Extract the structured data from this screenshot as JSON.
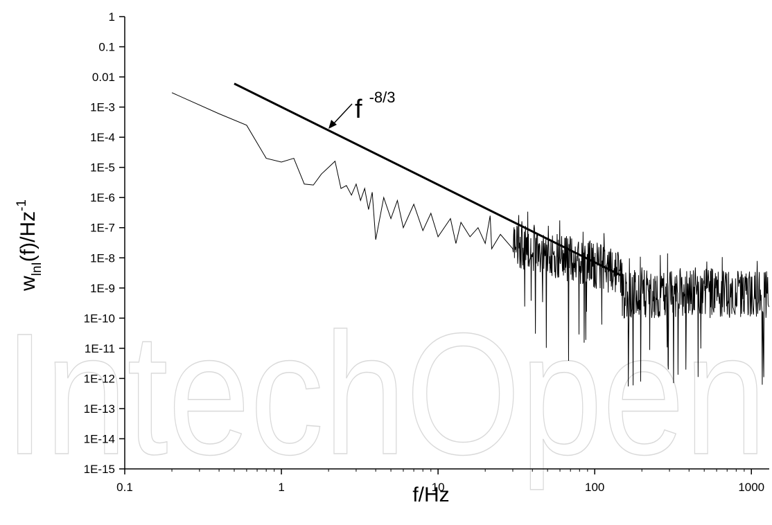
{
  "watermark": "IntechOpen",
  "chart_data": {
    "type": "line",
    "title": "",
    "xlabel": "f/Hz",
    "ylabel": {
      "base": "w",
      "sub": "lnI",
      "middle": "(f)/Hz",
      "sup": "-1"
    },
    "x_scale": "log",
    "y_scale": "log",
    "xlim": [
      0.1,
      1300
    ],
    "ylim": [
      1e-15,
      1
    ],
    "x_ticks": [
      {
        "value": 0.1,
        "label": "0.1"
      },
      {
        "value": 1,
        "label": "1"
      },
      {
        "value": 10,
        "label": "10"
      },
      {
        "value": 100,
        "label": "100"
      },
      {
        "value": 1000,
        "label": "1000"
      }
    ],
    "y_ticks": [
      {
        "value": 1,
        "label": "1"
      },
      {
        "value": 0.1,
        "label": "0.1"
      },
      {
        "value": 0.01,
        "label": "0.01"
      },
      {
        "value": 0.001,
        "label": "1E-3"
      },
      {
        "value": 0.0001,
        "label": "1E-4"
      },
      {
        "value": 1e-05,
        "label": "1E-5"
      },
      {
        "value": 1e-06,
        "label": "1E-6"
      },
      {
        "value": 1e-07,
        "label": "1E-7"
      },
      {
        "value": 1e-08,
        "label": "1E-8"
      },
      {
        "value": 1e-09,
        "label": "1E-9"
      },
      {
        "value": 1e-10,
        "label": "1E-10"
      },
      {
        "value": 1e-11,
        "label": "1E-11"
      },
      {
        "value": 1e-12,
        "label": "1E-12"
      },
      {
        "value": 1e-13,
        "label": "1E-13"
      },
      {
        "value": 1e-14,
        "label": "1E-14"
      },
      {
        "value": 1e-15,
        "label": "1E-15"
      }
    ],
    "grid": false,
    "series": [
      {
        "kind": "spectrum",
        "color": "#000000",
        "points": [
          [
            0.2,
            0.003
          ],
          [
            0.4,
            0.0006
          ],
          [
            0.6,
            0.00025
          ],
          [
            0.8,
            2e-05
          ],
          [
            1.0,
            1.5e-05
          ],
          [
            1.2,
            2e-05
          ],
          [
            1.4,
            2.8e-06
          ],
          [
            1.6,
            2.6e-06
          ],
          [
            1.8,
            6e-06
          ],
          [
            2.0,
            1e-05
          ],
          [
            2.2,
            1.6e-05
          ],
          [
            2.4,
            2e-06
          ],
          [
            2.6,
            2.5e-06
          ],
          [
            2.8,
            1.2e-06
          ],
          [
            3.0,
            2.8e-06
          ],
          [
            3.2,
            8e-07
          ],
          [
            3.4,
            2e-06
          ],
          [
            3.6,
            4e-07
          ],
          [
            3.8,
            1.5e-06
          ],
          [
            4.0,
            4e-08
          ],
          [
            4.5,
            1e-06
          ],
          [
            5.0,
            2e-07
          ],
          [
            5.5,
            8e-07
          ],
          [
            6.0,
            1e-07
          ],
          [
            7.0,
            6e-07
          ],
          [
            8.0,
            8e-08
          ],
          [
            9.0,
            3e-07
          ],
          [
            10.0,
            5e-08
          ],
          [
            12.0,
            2e-07
          ],
          [
            13.0,
            3e-08
          ],
          [
            14.0,
            1.5e-07
          ],
          [
            16.0,
            5e-08
          ],
          [
            18.0,
            1e-07
          ],
          [
            20.0,
            3e-08
          ],
          [
            21.5,
            2.5e-07
          ],
          [
            22.0,
            2e-08
          ],
          [
            25.0,
            6e-08
          ],
          [
            30.0,
            2e-08
          ]
        ]
      }
    ],
    "reference_line": {
      "label": "f",
      "label_sup": "-8/3",
      "slope": -2.6667,
      "x_start": 0.5,
      "y_start": 0.006,
      "x_end": 150,
      "y_end": 2.5e-09
    }
  }
}
